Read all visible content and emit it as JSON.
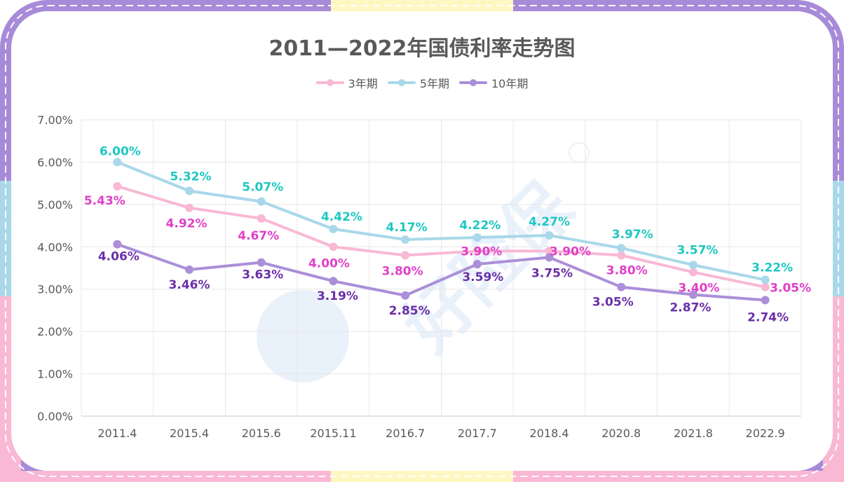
{
  "title": "2011—2022年国债利率走势图",
  "watermark": "好险保",
  "colors": {
    "s3": "#f9b8d4",
    "s5": "#a8d8ea",
    "s10": "#ab8fd9",
    "label3": "#e040c8",
    "label5": "#1ec8c0",
    "label10": "#6a2fa8",
    "grid": "#e6e6e6",
    "axis_text": "#595959",
    "frame_purple": "#a78bd8",
    "frame_blue": "#a8d8ea",
    "frame_pink": "#f9b8d4",
    "frame_yellow": "#fff7c2"
  },
  "chart_data": {
    "type": "line",
    "title": "2011—2022年国债利率走势图",
    "categories": [
      "2011.4",
      "2015.4",
      "2015.6",
      "2015.11",
      "2016.7",
      "2017.7",
      "2018.4",
      "2020.8",
      "2021.8",
      "2022.9"
    ],
    "y_ticks": [
      "0.00%",
      "1.00%",
      "2.00%",
      "3.00%",
      "4.00%",
      "5.00%",
      "6.00%",
      "7.00%"
    ],
    "ylim": [
      0,
      7
    ],
    "grid": true,
    "legend_position": "top",
    "series": [
      {
        "name": "3年期",
        "color_key": "s3",
        "label_color_key": "label3",
        "values": [
          5.43,
          4.92,
          4.67,
          4.0,
          3.8,
          3.9,
          3.9,
          3.8,
          3.4,
          3.05
        ],
        "labels": [
          "5.43%",
          "4.92%",
          "4.67%",
          "4.00%",
          "3.80%",
          "3.90%",
          "3.90%",
          "3.80%",
          "3.40%",
          "3.05%"
        ]
      },
      {
        "name": "5年期",
        "color_key": "s5",
        "label_color_key": "label5",
        "values": [
          6.0,
          5.32,
          5.07,
          4.42,
          4.17,
          4.22,
          4.27,
          3.97,
          3.57,
          3.22
        ],
        "labels": [
          "6.00%",
          "5.32%",
          "5.07%",
          "4.42%",
          "4.17%",
          "4.22%",
          "4.27%",
          "3.97%",
          "3.57%",
          "3.22%"
        ]
      },
      {
        "name": "10年期",
        "color_key": "s10",
        "label_color_key": "label10",
        "values": [
          4.06,
          3.46,
          3.63,
          3.19,
          2.85,
          3.59,
          3.75,
          3.05,
          2.87,
          2.74
        ],
        "labels": [
          "4.06%",
          "3.46%",
          "3.63%",
          "3.19%",
          "2.85%",
          "3.59%",
          "3.75%",
          "3.05%",
          "2.87%",
          "2.74%"
        ]
      }
    ]
  }
}
